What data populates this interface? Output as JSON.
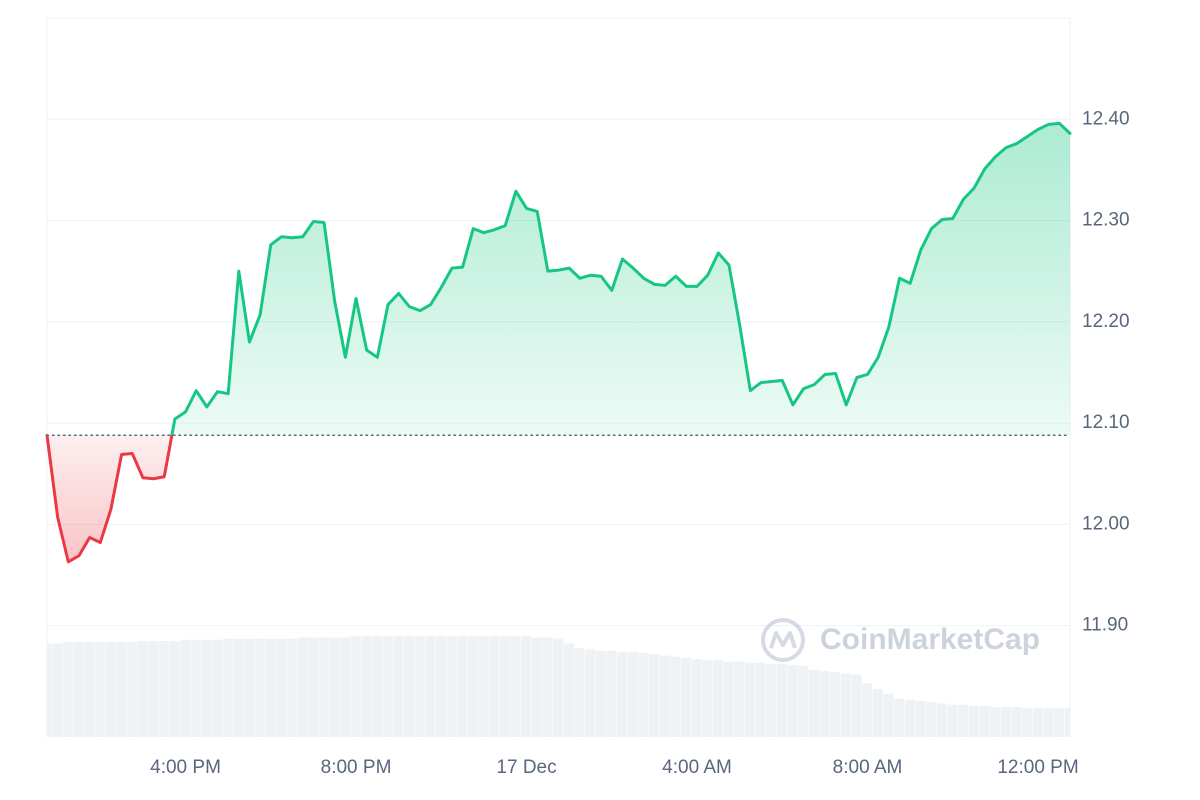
{
  "chart_data": {
    "type": "line",
    "x": [
      12.75,
      13,
      13.25,
      13.5,
      13.75,
      14,
      14.25,
      14.5,
      14.75,
      15,
      15.25,
      15.5,
      15.75,
      16,
      16.25,
      16.5,
      16.75,
      17,
      17.25,
      17.5,
      17.75,
      18,
      18.25,
      18.5,
      18.75,
      19,
      19.25,
      19.5,
      19.75,
      20,
      20.25,
      20.5,
      20.75,
      21,
      21.25,
      21.5,
      21.75,
      22,
      22.25,
      22.5,
      22.75,
      23,
      23.25,
      23.5,
      23.75,
      24,
      24.25,
      24.5,
      24.75,
      25,
      25.25,
      25.5,
      25.75,
      26,
      26.25,
      26.5,
      26.75,
      27,
      27.25,
      27.5,
      27.75,
      28,
      28.25,
      28.5,
      28.75,
      29,
      29.25,
      29.5,
      29.75,
      30,
      30.25,
      30.5,
      30.75,
      31,
      31.25,
      31.5,
      31.75,
      32,
      32.25,
      32.5,
      32.75,
      33,
      33.25,
      33.5,
      33.75,
      34,
      34.25,
      34.5,
      34.75,
      35,
      35.25,
      35.5,
      35.75,
      36,
      36.25,
      36.5,
      36.75
    ],
    "values": [
      12.088,
      12.007,
      11.963,
      11.969,
      11.987,
      11.982,
      12.015,
      12.069,
      12.07,
      12.046,
      12.045,
      12.047,
      12.104,
      12.111,
      12.132,
      12.116,
      12.131,
      12.129,
      12.25,
      12.18,
      12.207,
      12.276,
      12.284,
      12.283,
      12.284,
      12.299,
      12.298,
      12.22,
      12.165,
      12.223,
      12.172,
      12.165,
      12.217,
      12.228,
      12.215,
      12.211,
      12.217,
      12.234,
      12.253,
      12.254,
      12.292,
      12.288,
      12.291,
      12.295,
      12.329,
      12.312,
      12.309,
      12.25,
      12.251,
      12.253,
      12.243,
      12.246,
      12.245,
      12.231,
      12.262,
      12.253,
      12.243,
      12.237,
      12.236,
      12.245,
      12.235,
      12.235,
      12.246,
      12.268,
      12.256,
      12.197,
      12.132,
      12.14,
      12.141,
      12.142,
      12.118,
      12.134,
      12.138,
      12.148,
      12.149,
      12.118,
      12.145,
      12.148,
      12.165,
      12.195,
      12.243,
      12.238,
      12.271,
      12.292,
      12.301,
      12.302,
      12.321,
      12.332,
      12.351,
      12.363,
      12.372,
      12.376,
      12.383,
      12.39,
      12.395,
      12.396,
      12.386
    ],
    "baseline": 12.088,
    "up_color": "#16c784",
    "down_color": "#ea3943",
    "volume": [
      78,
      78,
      79,
      79,
      79,
      79,
      79,
      79,
      79,
      80,
      80,
      80,
      80,
      81,
      81,
      81,
      81,
      82,
      82,
      82,
      82,
      82,
      82,
      82,
      83,
      83,
      83,
      83,
      83,
      84,
      84,
      84,
      84,
      84,
      84,
      84,
      84,
      84,
      84,
      84,
      84,
      84,
      84,
      84,
      84,
      84,
      83,
      83,
      82,
      78,
      74,
      73,
      72,
      72,
      71,
      71,
      70,
      69,
      68,
      67,
      66,
      65,
      64,
      64,
      63,
      63,
      62,
      62,
      61,
      61,
      60,
      59,
      56,
      55,
      54,
      53,
      52,
      45,
      40,
      36,
      32,
      31,
      30,
      29,
      28,
      27,
      27,
      26,
      26,
      25,
      25,
      25,
      24,
      24,
      24,
      24,
      24
    ],
    "volume_lim": [
      0,
      100
    ],
    "volume_color": "#eff2f5",
    "xlim": [
      12.75,
      36.75
    ],
    "xticks": [
      {
        "value": 16,
        "label": "4:00 PM"
      },
      {
        "value": 20,
        "label": "8:00 PM"
      },
      {
        "value": 24,
        "label": "17 Dec"
      },
      {
        "value": 28,
        "label": "4:00 AM"
      },
      {
        "value": 32,
        "label": "8:00 AM"
      },
      {
        "value": 36,
        "label": "12:00 PM"
      }
    ],
    "ylim": [
      11.79,
      12.5
    ],
    "yticks": [
      {
        "value": 11.9,
        "label": "11.90"
      },
      {
        "value": 12.0,
        "label": "12.00"
      },
      {
        "value": 12.1,
        "label": "12.10"
      },
      {
        "value": 12.2,
        "label": "12.20"
      },
      {
        "value": 12.3,
        "label": "12.30"
      },
      {
        "value": 12.4,
        "label": "12.40"
      }
    ],
    "grid": true,
    "watermark": "CoinMarketCap"
  }
}
